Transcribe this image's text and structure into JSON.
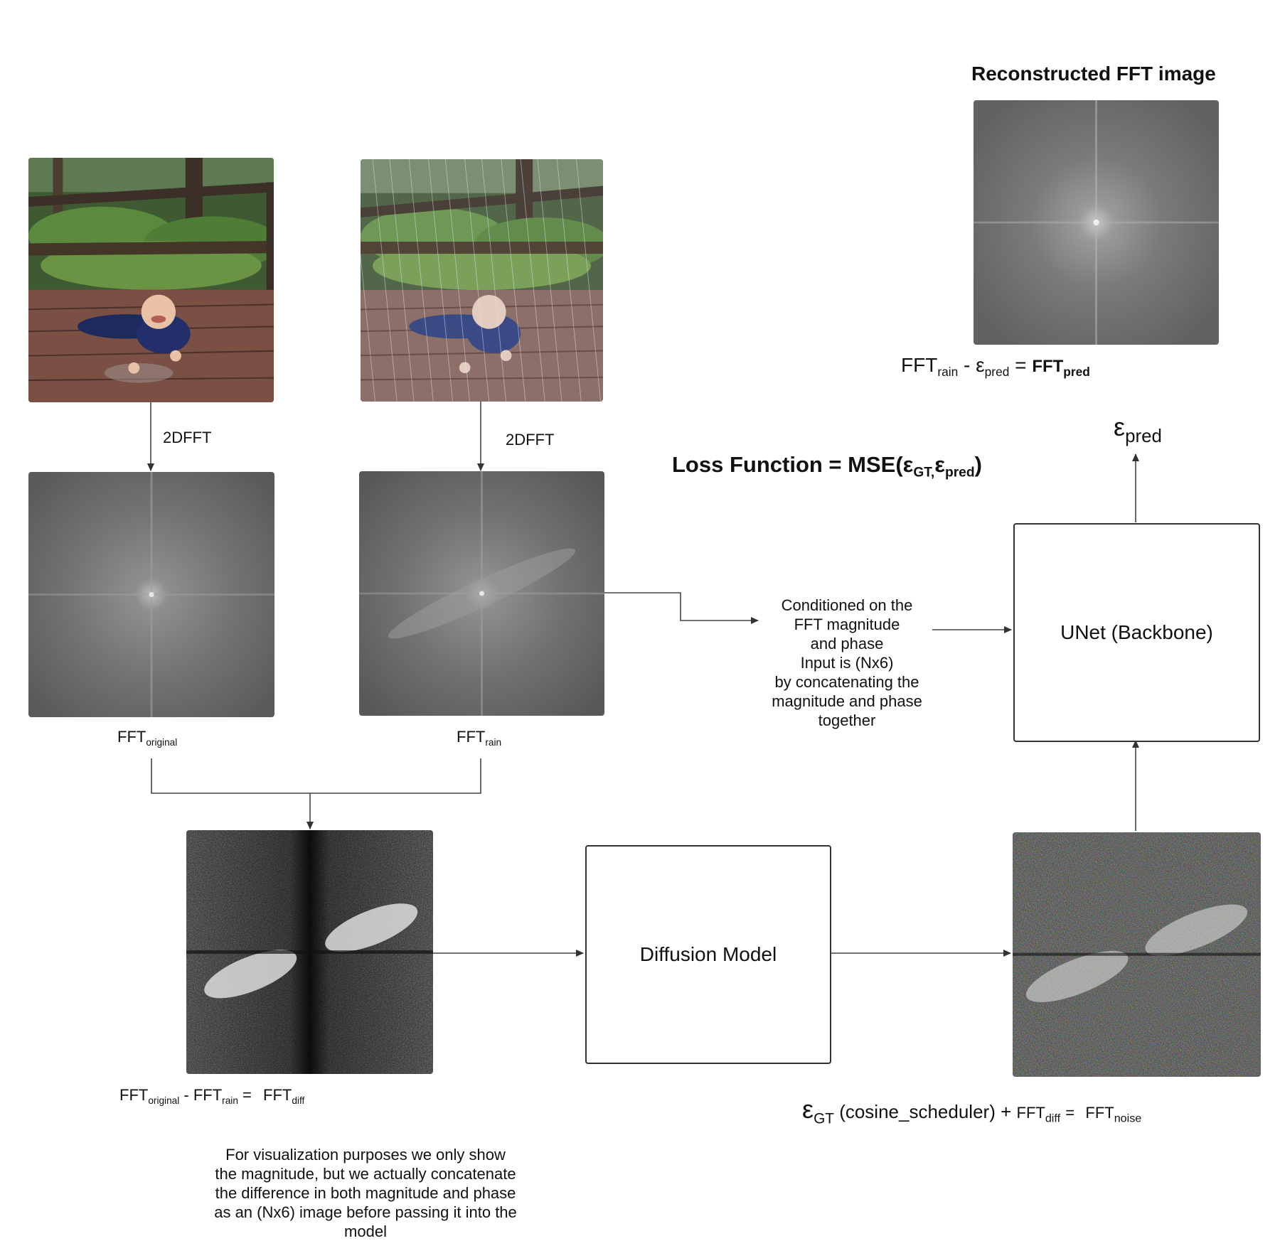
{
  "top_title": "Reconstructed FFT image",
  "reconstruct_eq": {
    "a": "FFT",
    "a_sub": "rain",
    "op1": "-",
    "eps": "ε",
    "eps_sub": "pred",
    "op2": "=",
    "b": "FFT",
    "b_sub": "pred"
  },
  "eps_pred_label": {
    "sym": "ε",
    "sub": "pred"
  },
  "loss": {
    "prefix": "Loss Function = MSE(",
    "eps1": "ε",
    "sub1": "GT,",
    "eps2": "ε",
    "sub2": "pred",
    "suffix": ")"
  },
  "fft_label_1": "2DFFT",
  "fft_label_2": "2DFFT",
  "fft_original": {
    "main": "FFT",
    "sub": "original"
  },
  "fft_rain": {
    "main": "FFT",
    "sub": "rain"
  },
  "condition_text": [
    "Conditioned on the",
    "FFT magnitude",
    "and phase",
    "Input is (Nx6)",
    "by concatenating the",
    "magnitude and phase",
    "together"
  ],
  "unet_label": "UNet (Backbone)",
  "diffusion_label": "Diffusion Model",
  "diff_eq": {
    "a": "FFT",
    "a_sub": "original",
    "op1": "-",
    "b": "FFT",
    "b_sub": "rain",
    "op2": "=",
    "c": "FFT",
    "c_sub": "diff"
  },
  "noise_eq": {
    "eps": "ε",
    "eps_sub": "GT",
    "sched": "(cosine_scheduler)",
    "op1": "+",
    "a": "FFT",
    "a_sub": "diff",
    "op2": "=",
    "b": "FFT",
    "b_sub": "noise"
  },
  "viz_note": [
    "For visualization purposes we only show",
    "the magnitude, but we actually concatenate",
    "the difference in both magnitude and phase",
    "as an (Nx6) image before passing it into the",
    "model"
  ]
}
